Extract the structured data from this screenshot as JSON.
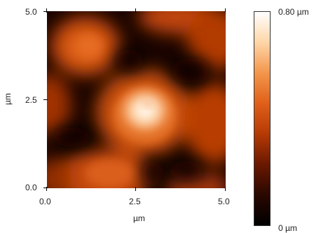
{
  "image": {
    "x_ticks": [
      "0.0",
      "2.5",
      "5.0"
    ],
    "y_ticks": [
      "5.0",
      "2.5",
      "0.0"
    ],
    "x_axis_label": "µm",
    "y_axis_label": "µm",
    "colorbar_max_label": "0.80 µm",
    "colorbar_min_label": "0 µm"
  },
  "colormap": {
    "stops": [
      "#000000",
      "#2a0800",
      "#6a1800",
      "#b53a05",
      "#e0601a",
      "#f3964c",
      "#ffd6a8",
      "#ffffff"
    ]
  }
}
